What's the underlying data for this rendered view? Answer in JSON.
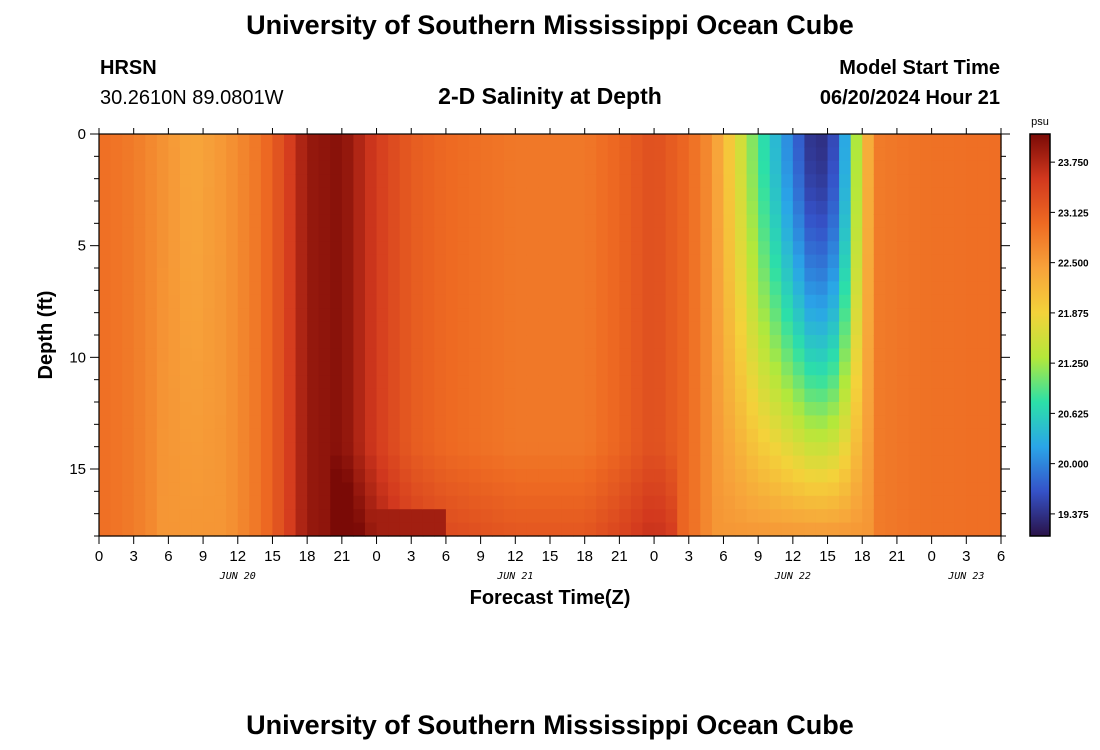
{
  "header": {
    "title": "University of Southern Mississippi Ocean Cube",
    "footer_title": "University of Southern Mississippi Ocean Cube",
    "station": "HRSN",
    "coordinates": "30.2610N  89.0801W",
    "plot_title": "2-D Salinity at Depth",
    "model_start_label": "Model Start Time",
    "model_start_value": "06/20/2024 Hour 21"
  },
  "chart_data": {
    "type": "heatmap",
    "xlabel": "Forecast Time(Z)",
    "ylabel": "Depth (ft)",
    "x_hour_start": 0,
    "x_hour_end": 78,
    "x_step_hours": 1,
    "x_ticks": [
      "0",
      "3",
      "6",
      "9",
      "12",
      "15",
      "18",
      "21",
      "0",
      "3",
      "6",
      "9",
      "12",
      "15",
      "18",
      "21",
      "0",
      "3",
      "6",
      "9",
      "12",
      "15",
      "18",
      "21",
      "0",
      "3",
      "6"
    ],
    "date_labels": [
      {
        "label": "JUN 20",
        "hour": 12
      },
      {
        "label": "JUN 21",
        "hour": 36
      },
      {
        "label": "JUN 22",
        "hour": 60
      },
      {
        "label": "JUN 23",
        "hour": 75
      }
    ],
    "y_ticks": [
      0,
      5,
      10,
      15
    ],
    "ylim": [
      0,
      18
    ],
    "depth_step": 0.6,
    "colorbar": {
      "unit": "psu",
      "min": 19.1,
      "max": 24.1,
      "tick_labels": [
        "23.750",
        "23.125",
        "22.500",
        "21.875",
        "21.250",
        "20.625",
        "20.000",
        "19.375"
      ],
      "tick_values": [
        23.75,
        23.125,
        22.5,
        21.875,
        21.25,
        20.625,
        20.0,
        19.375
      ],
      "stops": [
        "#2a1248",
        "#3552c8",
        "#2aa5e8",
        "#2ce0a8",
        "#b4e83a",
        "#f4d23a",
        "#f7a23a",
        "#ee6a22",
        "#d2381e",
        "#7a0a06"
      ]
    },
    "salinity_profile_surface": [
      {
        "hour": 0,
        "value": 22.95
      },
      {
        "hour": 3,
        "value": 22.82
      },
      {
        "hour": 6,
        "value": 22.55
      },
      {
        "hour": 8,
        "value": 22.38
      },
      {
        "hour": 11,
        "value": 22.55
      },
      {
        "hour": 14,
        "value": 22.9
      },
      {
        "hour": 16,
        "value": 23.35
      },
      {
        "hour": 18,
        "value": 23.92
      },
      {
        "hour": 21,
        "value": 24.02
      },
      {
        "hour": 24,
        "value": 23.5
      },
      {
        "hour": 27,
        "value": 23.15
      },
      {
        "hour": 30,
        "value": 23.0
      },
      {
        "hour": 36,
        "value": 22.85
      },
      {
        "hour": 42,
        "value": 22.85
      },
      {
        "hour": 45,
        "value": 23.05
      },
      {
        "hour": 48,
        "value": 23.3
      },
      {
        "hour": 51,
        "value": 23.0
      },
      {
        "hour": 53,
        "value": 22.6
      },
      {
        "hour": 55,
        "value": 21.8
      },
      {
        "hour": 57,
        "value": 20.9
      },
      {
        "hour": 60,
        "value": 19.9
      },
      {
        "hour": 62,
        "value": 19.25
      },
      {
        "hour": 64,
        "value": 19.7
      },
      {
        "hour": 65,
        "value": 20.8
      },
      {
        "hour": 66,
        "value": 21.8
      },
      {
        "hour": 67,
        "value": 22.8
      },
      {
        "hour": 70,
        "value": 22.9
      },
      {
        "hour": 78,
        "value": 22.95
      }
    ]
  }
}
